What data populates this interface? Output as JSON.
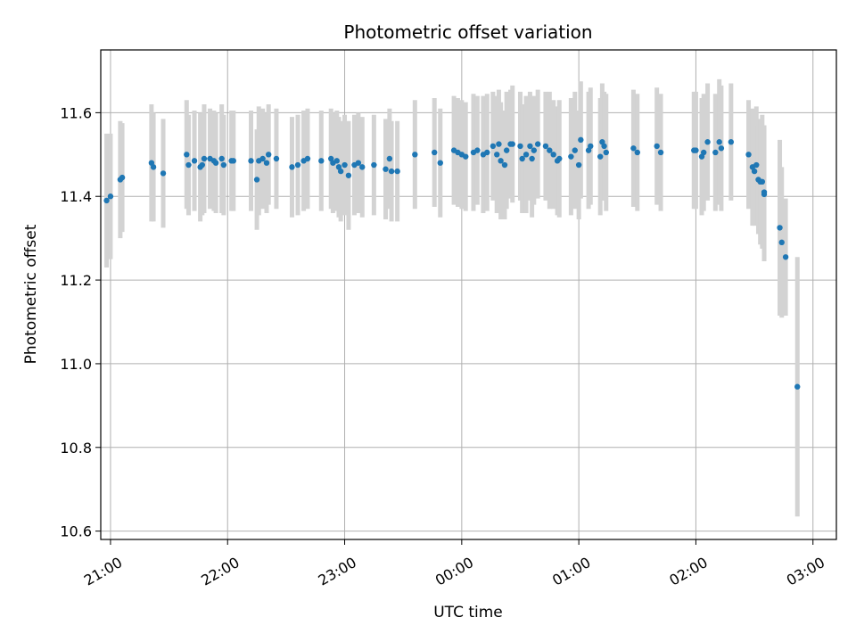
{
  "chart_data": {
    "type": "scatter",
    "title": "Photometric offset variation",
    "xlabel": "UTC time",
    "ylabel": "Photometric offset",
    "x_axis": "time",
    "xlim": [
      "20:55",
      "03:12"
    ],
    "ylim": [
      10.58,
      11.75
    ],
    "xticks": [
      "21:00",
      "22:00",
      "23:00",
      "00:00",
      "01:00",
      "02:00",
      "03:00"
    ],
    "yticks": [
      "10.6",
      "10.8",
      "11.0",
      "11.2",
      "11.4",
      "11.6"
    ],
    "grid": true,
    "colors": {
      "point": "#1f77b4",
      "errorbar": "#d3d3d3",
      "grid": "#b0b0b0"
    },
    "points": [
      {
        "x": "20:58",
        "y": 11.39,
        "err": 0.16
      },
      {
        "x": "21:00",
        "y": 11.4,
        "err": 0.15
      },
      {
        "x": "21:05",
        "y": 11.44,
        "err": 0.14
      },
      {
        "x": "21:06",
        "y": 11.445,
        "err": 0.13
      },
      {
        "x": "21:21",
        "y": 11.48,
        "err": 0.14
      },
      {
        "x": "21:22",
        "y": 11.47,
        "err": 0.13
      },
      {
        "x": "21:27",
        "y": 11.455,
        "err": 0.13
      },
      {
        "x": "21:39",
        "y": 11.5,
        "err": 0.13
      },
      {
        "x": "21:40",
        "y": 11.475,
        "err": 0.12
      },
      {
        "x": "21:43",
        "y": 11.485,
        "err": 0.12
      },
      {
        "x": "21:46",
        "y": 11.47,
        "err": 0.13
      },
      {
        "x": "21:47",
        "y": 11.475,
        "err": 0.12
      },
      {
        "x": "21:48",
        "y": 11.49,
        "err": 0.13
      },
      {
        "x": "21:51",
        "y": 11.49,
        "err": 0.12
      },
      {
        "x": "21:53",
        "y": 11.485,
        "err": 0.12
      },
      {
        "x": "21:54",
        "y": 11.48,
        "err": 0.12
      },
      {
        "x": "21:57",
        "y": 11.49,
        "err": 0.13
      },
      {
        "x": "21:58",
        "y": 11.475,
        "err": 0.12
      },
      {
        "x": "22:02",
        "y": 11.485,
        "err": 0.12
      },
      {
        "x": "22:03",
        "y": 11.485,
        "err": 0.12
      },
      {
        "x": "22:12",
        "y": 11.485,
        "err": 0.12
      },
      {
        "x": "22:15",
        "y": 11.44,
        "err": 0.12
      },
      {
        "x": "22:16",
        "y": 11.485,
        "err": 0.13
      },
      {
        "x": "22:18",
        "y": 11.49,
        "err": 0.12
      },
      {
        "x": "22:20",
        "y": 11.48,
        "err": 0.12
      },
      {
        "x": "22:21",
        "y": 11.5,
        "err": 0.12
      },
      {
        "x": "22:25",
        "y": 11.49,
        "err": 0.12
      },
      {
        "x": "22:33",
        "y": 11.47,
        "err": 0.12
      },
      {
        "x": "22:36",
        "y": 11.475,
        "err": 0.12
      },
      {
        "x": "22:39",
        "y": 11.485,
        "err": 0.12
      },
      {
        "x": "22:41",
        "y": 11.49,
        "err": 0.12
      },
      {
        "x": "22:48",
        "y": 11.485,
        "err": 0.12
      },
      {
        "x": "22:53",
        "y": 11.49,
        "err": 0.12
      },
      {
        "x": "22:54",
        "y": 11.48,
        "err": 0.12
      },
      {
        "x": "22:56",
        "y": 11.485,
        "err": 0.12
      },
      {
        "x": "22:57",
        "y": 11.47,
        "err": 0.12
      },
      {
        "x": "22:58",
        "y": 11.46,
        "err": 0.12
      },
      {
        "x": "23:00",
        "y": 11.475,
        "err": 0.12
      },
      {
        "x": "23:02",
        "y": 11.45,
        "err": 0.13
      },
      {
        "x": "23:05",
        "y": 11.475,
        "err": 0.12
      },
      {
        "x": "23:07",
        "y": 11.48,
        "err": 0.12
      },
      {
        "x": "23:09",
        "y": 11.47,
        "err": 0.12
      },
      {
        "x": "23:15",
        "y": 11.475,
        "err": 0.12
      },
      {
        "x": "23:21",
        "y": 11.465,
        "err": 0.12
      },
      {
        "x": "23:23",
        "y": 11.49,
        "err": 0.12
      },
      {
        "x": "23:24",
        "y": 11.46,
        "err": 0.12
      },
      {
        "x": "23:27",
        "y": 11.46,
        "err": 0.12
      },
      {
        "x": "23:36",
        "y": 11.5,
        "err": 0.13
      },
      {
        "x": "23:46",
        "y": 11.505,
        "err": 0.13
      },
      {
        "x": "23:49",
        "y": 11.48,
        "err": 0.13
      },
      {
        "x": "23:56",
        "y": 11.51,
        "err": 0.13
      },
      {
        "x": "23:58",
        "y": 11.505,
        "err": 0.13
      },
      {
        "x": "00:00",
        "y": 11.5,
        "err": 0.13
      },
      {
        "x": "00:02",
        "y": 11.495,
        "err": 0.13
      },
      {
        "x": "00:06",
        "y": 11.505,
        "err": 0.14
      },
      {
        "x": "00:08",
        "y": 11.51,
        "err": 0.13
      },
      {
        "x": "00:11",
        "y": 11.5,
        "err": 0.14
      },
      {
        "x": "00:13",
        "y": 11.505,
        "err": 0.14
      },
      {
        "x": "00:16",
        "y": 11.52,
        "err": 0.13
      },
      {
        "x": "00:18",
        "y": 11.5,
        "err": 0.14
      },
      {
        "x": "00:19",
        "y": 11.525,
        "err": 0.13
      },
      {
        "x": "00:20",
        "y": 11.485,
        "err": 0.14
      },
      {
        "x": "00:22",
        "y": 11.475,
        "err": 0.13
      },
      {
        "x": "00:23",
        "y": 11.51,
        "err": 0.14
      },
      {
        "x": "00:25",
        "y": 11.525,
        "err": 0.13
      },
      {
        "x": "00:26",
        "y": 11.525,
        "err": 0.14
      },
      {
        "x": "00:30",
        "y": 11.52,
        "err": 0.13
      },
      {
        "x": "00:31",
        "y": 11.49,
        "err": 0.13
      },
      {
        "x": "00:33",
        "y": 11.5,
        "err": 0.14
      },
      {
        "x": "00:35",
        "y": 11.52,
        "err": 0.13
      },
      {
        "x": "00:36",
        "y": 11.49,
        "err": 0.14
      },
      {
        "x": "00:37",
        "y": 11.51,
        "err": 0.13
      },
      {
        "x": "00:39",
        "y": 11.525,
        "err": 0.13
      },
      {
        "x": "00:43",
        "y": 11.52,
        "err": 0.13
      },
      {
        "x": "00:45",
        "y": 11.51,
        "err": 0.14
      },
      {
        "x": "00:47",
        "y": 11.5,
        "err": 0.13
      },
      {
        "x": "00:49",
        "y": 11.485,
        "err": 0.13
      },
      {
        "x": "00:50",
        "y": 11.49,
        "err": 0.14
      },
      {
        "x": "00:56",
        "y": 11.495,
        "err": 0.14
      },
      {
        "x": "00:58",
        "y": 11.51,
        "err": 0.14
      },
      {
        "x": "01:00",
        "y": 11.475,
        "err": 0.13
      },
      {
        "x": "01:01",
        "y": 11.535,
        "err": 0.14
      },
      {
        "x": "01:05",
        "y": 11.51,
        "err": 0.14
      },
      {
        "x": "01:06",
        "y": 11.52,
        "err": 0.14
      },
      {
        "x": "01:11",
        "y": 11.495,
        "err": 0.14
      },
      {
        "x": "01:12",
        "y": 11.53,
        "err": 0.14
      },
      {
        "x": "01:13",
        "y": 11.52,
        "err": 0.13
      },
      {
        "x": "01:14",
        "y": 11.505,
        "err": 0.14
      },
      {
        "x": "01:28",
        "y": 11.515,
        "err": 0.14
      },
      {
        "x": "01:30",
        "y": 11.505,
        "err": 0.14
      },
      {
        "x": "01:40",
        "y": 11.52,
        "err": 0.14
      },
      {
        "x": "01:42",
        "y": 11.505,
        "err": 0.14
      },
      {
        "x": "01:59",
        "y": 11.51,
        "err": 0.14
      },
      {
        "x": "02:00",
        "y": 11.51,
        "err": 0.14
      },
      {
        "x": "02:03",
        "y": 11.495,
        "err": 0.14
      },
      {
        "x": "02:04",
        "y": 11.505,
        "err": 0.14
      },
      {
        "x": "02:06",
        "y": 11.53,
        "err": 0.14
      },
      {
        "x": "02:10",
        "y": 11.505,
        "err": 0.14
      },
      {
        "x": "02:12",
        "y": 11.53,
        "err": 0.15
      },
      {
        "x": "02:13",
        "y": 11.515,
        "err": 0.15
      },
      {
        "x": "02:18",
        "y": 11.53,
        "err": 0.14
      },
      {
        "x": "02:27",
        "y": 11.5,
        "err": 0.13
      },
      {
        "x": "02:29",
        "y": 11.47,
        "err": 0.14
      },
      {
        "x": "02:30",
        "y": 11.46,
        "err": 0.13
      },
      {
        "x": "02:31",
        "y": 11.475,
        "err": 0.14
      },
      {
        "x": "02:32",
        "y": 11.44,
        "err": 0.13
      },
      {
        "x": "02:33",
        "y": 11.435,
        "err": 0.15
      },
      {
        "x": "02:34",
        "y": 11.435,
        "err": 0.16
      },
      {
        "x": "02:35",
        "y": 11.41,
        "err": 0.16
      },
      {
        "x": "02:35",
        "y": 11.405,
        "err": 0.16
      },
      {
        "x": "02:43",
        "y": 11.325,
        "err": 0.21
      },
      {
        "x": "02:44",
        "y": 11.29,
        "err": 0.18
      },
      {
        "x": "02:46",
        "y": 11.255,
        "err": 0.14
      },
      {
        "x": "02:52",
        "y": 10.945,
        "err": 0.31
      }
    ]
  }
}
